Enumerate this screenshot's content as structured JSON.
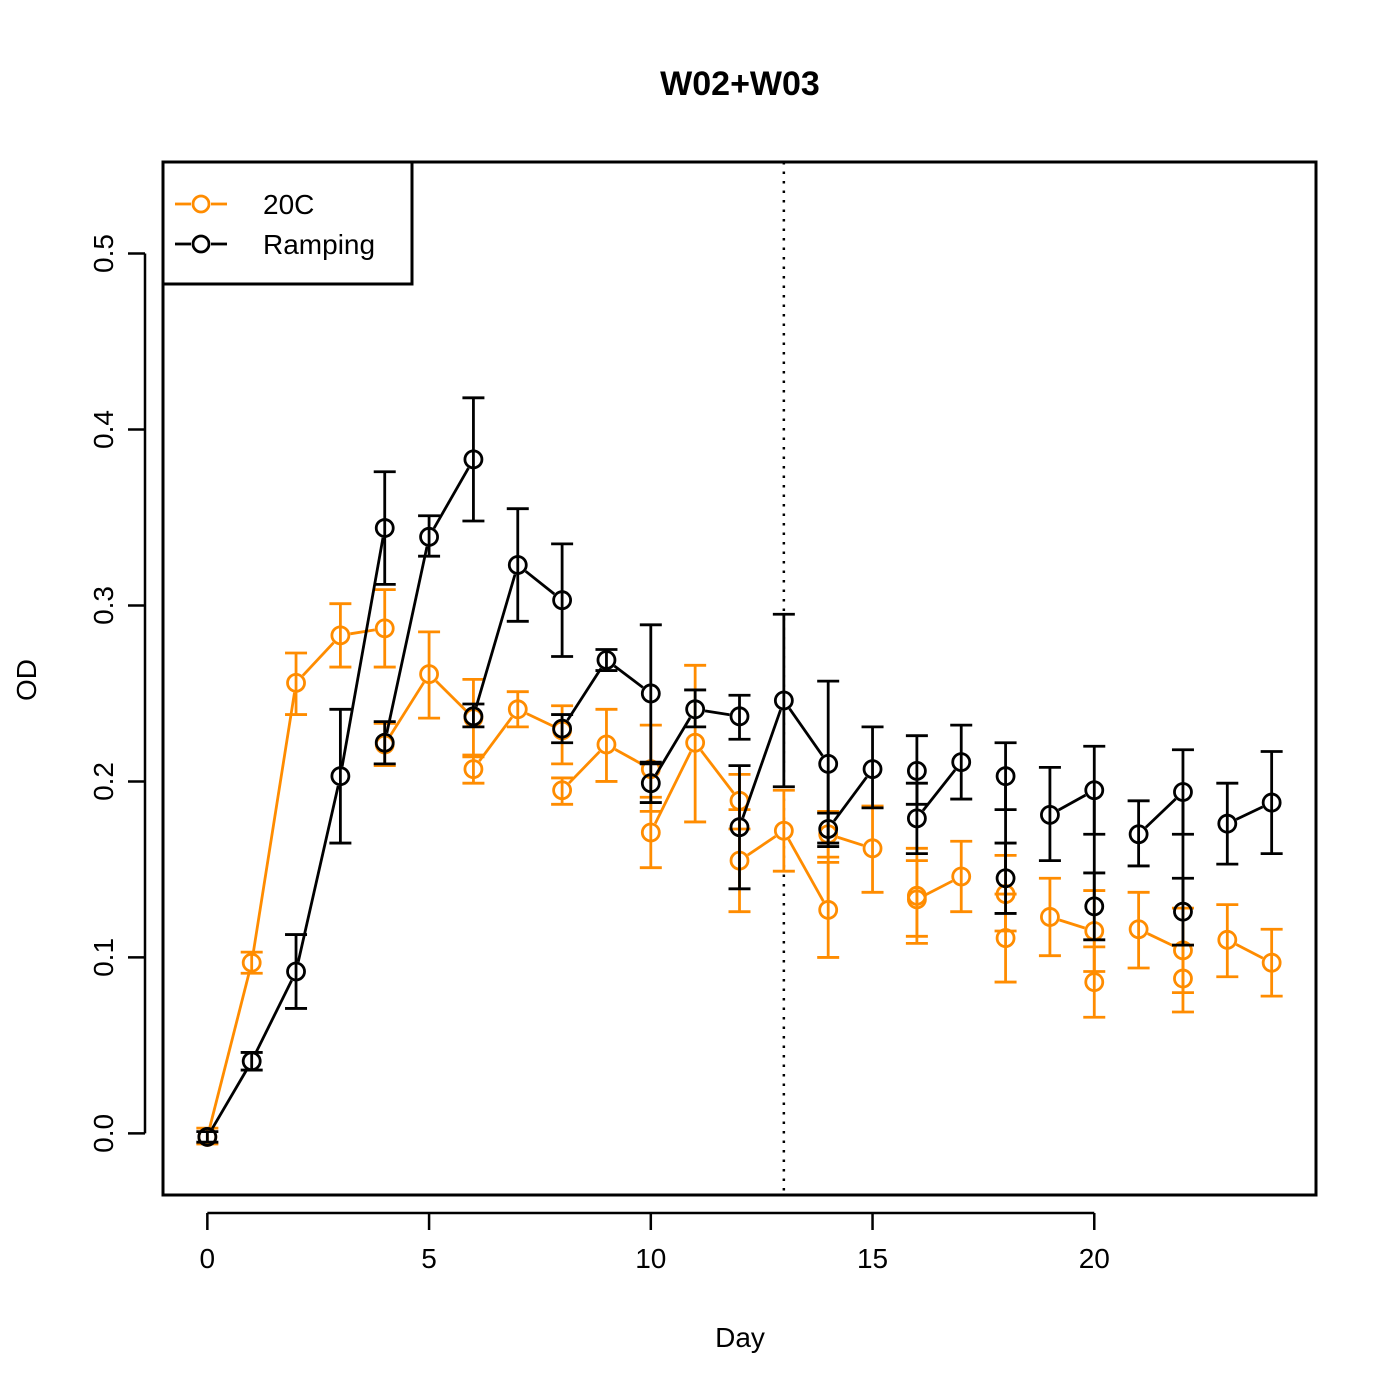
{
  "chart_data": {
    "type": "line",
    "title": "W02+W03",
    "xlabel": "Day",
    "ylabel": "OD",
    "xlim": [
      -1,
      25
    ],
    "ylim": [
      -0.035,
      0.552
    ],
    "x_ticks": [
      0,
      5,
      10,
      15,
      20
    ],
    "x_tick_labels": [
      "0",
      "5",
      "10",
      "15",
      "20"
    ],
    "y_ticks": [
      0.0,
      0.1,
      0.2,
      0.3,
      0.4,
      0.5
    ],
    "y_tick_labels": [
      "0.0",
      "0.1",
      "0.2",
      "0.3",
      "0.4",
      "0.5"
    ],
    "grid": false,
    "legend_position": "top-left",
    "reference_line": {
      "x": 13,
      "style": "dotted"
    },
    "series": [
      {
        "name": "20C",
        "color": "#FF8C00",
        "x": [
          0,
          1,
          2,
          3,
          4,
          4,
          5,
          6,
          6,
          7,
          8,
          8,
          9,
          10,
          10,
          11,
          12,
          12,
          13,
          14,
          14,
          15,
          16,
          16,
          17,
          18,
          18,
          19,
          20,
          20,
          21,
          22,
          22,
          23,
          24
        ],
        "y": [
          -0.002,
          0.097,
          0.256,
          0.283,
          0.287,
          0.221,
          0.261,
          0.236,
          0.207,
          0.241,
          0.229,
          0.195,
          0.221,
          0.207,
          0.171,
          0.222,
          0.189,
          0.155,
          0.172,
          0.127,
          0.17,
          0.162,
          0.135,
          0.133,
          0.146,
          0.136,
          0.111,
          0.123,
          0.115,
          0.086,
          0.116,
          0.104,
          0.088,
          0.11,
          0.097
        ],
        "lower": [
          -0.006,
          0.091,
          0.238,
          0.265,
          0.265,
          0.209,
          0.236,
          0.214,
          0.199,
          0.231,
          0.21,
          0.187,
          0.2,
          0.183,
          0.151,
          0.177,
          0.173,
          0.126,
          0.149,
          0.1,
          0.157,
          0.137,
          0.108,
          0.112,
          0.126,
          0.115,
          0.086,
          0.101,
          0.092,
          0.066,
          0.094,
          0.08,
          0.069,
          0.089,
          0.078
        ],
        "upper": [
          0.003,
          0.103,
          0.273,
          0.301,
          0.309,
          0.233,
          0.285,
          0.258,
          0.215,
          0.251,
          0.243,
          0.202,
          0.241,
          0.232,
          0.191,
          0.266,
          0.204,
          0.184,
          0.195,
          0.154,
          0.183,
          0.186,
          0.162,
          0.155,
          0.166,
          0.158,
          0.136,
          0.145,
          0.138,
          0.106,
          0.137,
          0.128,
          0.107,
          0.13,
          0.116
        ],
        "segments": [
          [
            0,
            1
          ],
          [
            1,
            2
          ],
          [
            2,
            3
          ],
          [
            3,
            4
          ],
          [
            5,
            6
          ],
          [
            6,
            7
          ],
          [
            8,
            9
          ],
          [
            9,
            10
          ],
          [
            11,
            12
          ],
          [
            12,
            13
          ],
          [
            14,
            15
          ],
          [
            15,
            16
          ],
          [
            17,
            18
          ],
          [
            18,
            19
          ],
          [
            19,
            20
          ],
          [
            20,
            21
          ],
          [
            22,
            23
          ],
          [
            23,
            24
          ],
          [
            25,
            26
          ],
          [
            27,
            28
          ],
          [
            28,
            29
          ],
          [
            30,
            31
          ],
          [
            31,
            32
          ],
          [
            33,
            34
          ]
        ]
      },
      {
        "name": "Ramping",
        "color": "#000000",
        "x": [
          0,
          1,
          2,
          3,
          4,
          4,
          5,
          6,
          6,
          7,
          8,
          8,
          9,
          10,
          10,
          11,
          12,
          12,
          13,
          14,
          14,
          15,
          16,
          16,
          17,
          18,
          18,
          19,
          20,
          20,
          21,
          22,
          22,
          23,
          24
        ],
        "y": [
          -0.002,
          0.041,
          0.092,
          0.203,
          0.344,
          0.222,
          0.339,
          0.383,
          0.237,
          0.323,
          0.303,
          0.23,
          0.269,
          0.25,
          0.199,
          0.241,
          0.237,
          0.174,
          0.246,
          0.21,
          0.173,
          0.207,
          0.206,
          0.179,
          0.211,
          0.203,
          0.145,
          0.181,
          0.195,
          0.129,
          0.17,
          0.194,
          0.126,
          0.176,
          0.188
        ],
        "lower": [
          -0.005,
          0.036,
          0.071,
          0.165,
          0.312,
          0.21,
          0.328,
          0.348,
          0.231,
          0.291,
          0.271,
          0.222,
          0.263,
          0.211,
          0.188,
          0.231,
          0.224,
          0.139,
          0.197,
          0.163,
          0.165,
          0.185,
          0.187,
          0.159,
          0.19,
          0.184,
          0.125,
          0.155,
          0.17,
          0.11,
          0.152,
          0.17,
          0.107,
          0.153,
          0.159
        ],
        "upper": [
          0.001,
          0.046,
          0.113,
          0.241,
          0.376,
          0.234,
          0.351,
          0.418,
          0.244,
          0.355,
          0.335,
          0.238,
          0.275,
          0.289,
          0.21,
          0.252,
          0.249,
          0.209,
          0.295,
          0.257,
          0.182,
          0.231,
          0.226,
          0.199,
          0.232,
          0.222,
          0.165,
          0.208,
          0.22,
          0.148,
          0.189,
          0.218,
          0.145,
          0.199,
          0.217
        ],
        "segments": [
          [
            0,
            1
          ],
          [
            1,
            2
          ],
          [
            2,
            3
          ],
          [
            3,
            4
          ],
          [
            5,
            6
          ],
          [
            6,
            7
          ],
          [
            8,
            9
          ],
          [
            9,
            10
          ],
          [
            11,
            12
          ],
          [
            12,
            13
          ],
          [
            14,
            15
          ],
          [
            15,
            16
          ],
          [
            17,
            18
          ],
          [
            18,
            19
          ],
          [
            19,
            20
          ],
          [
            20,
            21
          ],
          [
            22,
            23
          ],
          [
            23,
            24
          ],
          [
            25,
            26
          ],
          [
            27,
            28
          ],
          [
            28,
            29
          ],
          [
            30,
            31
          ],
          [
            31,
            32
          ],
          [
            33,
            34
          ]
        ]
      }
    ]
  }
}
